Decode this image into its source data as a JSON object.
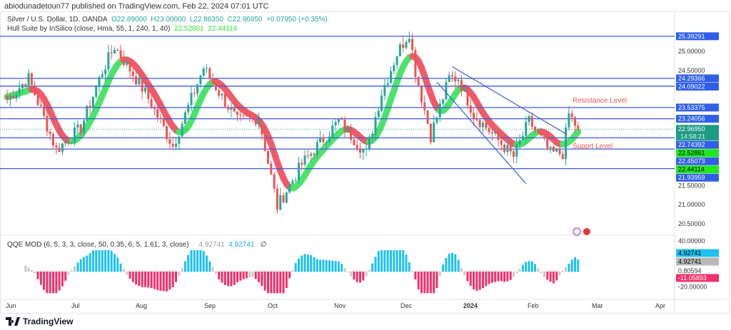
{
  "header": {
    "published": "abiodunadetoun77 published on TradingView.com, Feb 22, 2024 07:01 UTC"
  },
  "legend": {
    "symbol": "Silver / U.S. Dollar, 1D, OANDA",
    "o": "O22.89000",
    "h": "H23.00000",
    "l": "L22.86350",
    "c": "C22.96950",
    "change": "+0.07950 (+0.35%)",
    "hull": "Hull Suite by InSilico (close, Hma, 55, 1, 240, 1, 40)",
    "hull_v1": "22.52861",
    "hull_v2": "22.44114",
    "qqe": "QQE MOD (6, 5, 3, 3, close, 50, 0.35, 6, 5, 1.61, 3, close)",
    "qqe_v1": "4.92741",
    "qqe_v2": "4.92741",
    "qqe_icon": "∅"
  },
  "annotations": {
    "resistance": "Resistance Level",
    "support": "Supprt Level",
    "countdown": "14:58:21"
  },
  "footer": {
    "brand": "TradingView"
  },
  "colors": {
    "up": "#26a69a",
    "down": "#ef5350",
    "line": "#3a5bd9",
    "hull_up": "#4be36c",
    "hull_down": "#f05a6a",
    "qqe_up": "#1ec0f0",
    "qqe_down": "#f0306a",
    "qqe_gray": "#c8c8c8"
  },
  "chart_data": {
    "type": "candlestick",
    "title": "Silver / U.S. Dollar, 1D, OANDA",
    "ylim": [
      20.3,
      25.9
    ],
    "y_ticks": [
      "25.00000",
      "24.50000",
      "21.50000",
      "21.00000",
      "20.50000"
    ],
    "x_ticks": [
      "Jun",
      "Jul",
      "Aug",
      "Sep",
      "Oct",
      "Nov",
      "Dec",
      "2024",
      "Feb",
      "Mar",
      "Apr"
    ],
    "close_path_anchors": [
      [
        0,
        23.74
      ],
      [
        7,
        24.3
      ],
      [
        16,
        22.43
      ],
      [
        24,
        23.0
      ],
      [
        31,
        24.48
      ],
      [
        35,
        25.13
      ],
      [
        45,
        23.92
      ],
      [
        54,
        22.53
      ],
      [
        64,
        24.57
      ],
      [
        75,
        23.18
      ],
      [
        82,
        23.27
      ],
      [
        88,
        20.95
      ],
      [
        96,
        22.06
      ],
      [
        108,
        23.18
      ],
      [
        117,
        22.34
      ],
      [
        122,
        23.92
      ],
      [
        127,
        24.94
      ],
      [
        131,
        25.5
      ],
      [
        133,
        24.48
      ],
      [
        138,
        22.8
      ],
      [
        144,
        24.3
      ],
      [
        147,
        24.3
      ],
      [
        152,
        23.36
      ],
      [
        165,
        22.25
      ],
      [
        170,
        23.18
      ],
      [
        177,
        22.34
      ],
      [
        181,
        22.34
      ],
      [
        183,
        23.36
      ],
      [
        186,
        22.97
      ]
    ],
    "levels": [
      {
        "value": 25.39291,
        "label": "25.39291"
      },
      {
        "value": 24.29366,
        "label": "24.29366"
      },
      {
        "value": 24.09022,
        "label": "24.09022"
      },
      {
        "value": 23.53375,
        "label": "23.53375"
      },
      {
        "value": 23.24056,
        "label": "23.24056"
      },
      {
        "value": 22.74392,
        "label": "22.74392"
      },
      {
        "value": 22.45073,
        "label": "22.45073"
      },
      {
        "value": 21.93959,
        "label": "21.93959"
      }
    ],
    "last_price": {
      "value": 22.9695,
      "label": "22.96950"
    },
    "hull_tags": [
      {
        "value": 22.52861,
        "label": "22.52861"
      },
      {
        "value": 22.44114,
        "label": "22.44114"
      }
    ],
    "channel": [
      [
        [
          145,
          24.6
        ],
        [
          182,
          22.85
        ]
      ],
      [
        [
          140,
          24.2
        ],
        [
          169,
          21.55
        ]
      ]
    ],
    "qqe": {
      "ylim": [
        -35,
        45
      ],
      "ticks": [
        "40.00000",
        "0.80594",
        "-20.00000"
      ],
      "tags": [
        {
          "value": 4.92741,
          "label": "4.92741",
          "kind": "up"
        },
        {
          "value": 4.92741,
          "label": "4.92741",
          "kind": "gray"
        },
        {
          "value": -11.05893,
          "label": "-11.05893",
          "kind": "down"
        }
      ]
    }
  }
}
